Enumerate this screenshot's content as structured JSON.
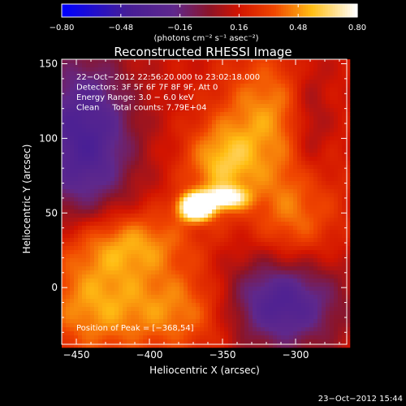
{
  "chart_data": {
    "type": "heatmap",
    "title": "Reconstructed RHESSI Image",
    "xlabel": "Heliocentric X (arcsec)",
    "ylabel": "Heliocentric Y (arcsec)",
    "xlim": [
      -460,
      -265
    ],
    "ylim": [
      -38,
      153
    ],
    "x_ticks": [
      -450,
      -400,
      -350,
      -300
    ],
    "x_tick_labels": [
      "−450",
      "−400",
      "−350",
      "−300"
    ],
    "y_ticks": [
      0,
      50,
      100,
      150
    ],
    "y_tick_labels": [
      "0",
      "50",
      "100",
      "150"
    ],
    "colorbar": {
      "range": [
        -0.8,
        0.8
      ],
      "ticks": [
        -0.8,
        -0.48,
        -0.16,
        0.16,
        0.48,
        0.8
      ],
      "tick_labels": [
        "−0.80",
        "−0.48",
        "−0.16",
        "0.16",
        "0.48",
        "0.80"
      ],
      "unit_label": "(photons cm⁻² s⁻¹ asec⁻²)"
    },
    "annotations": [
      "22−Oct−2012 22:56:20.000 to 23:02:18.000",
      "Detectors: 3F 5F 6F 7F 8F 9F, Att 0",
      "Energy Range: 3.0 − 6.0 keV",
      "Clean     Total counts: 7.79E+04"
    ],
    "peak_label": "Position of Peak = [−368,54]",
    "peak": [
      -368,
      54
    ],
    "sources": [
      {
        "x": -368,
        "y": 54,
        "amp": 1.0,
        "sx": 8,
        "sy": 6
      },
      {
        "x": -348,
        "y": 60,
        "amp": 0.55,
        "sx": 10,
        "sy": 5
      },
      {
        "x": -350,
        "y": 82,
        "amp": 0.38,
        "sx": 18,
        "sy": 20
      },
      {
        "x": -320,
        "y": 118,
        "amp": 0.3,
        "sx": 22,
        "sy": 28
      },
      {
        "x": -415,
        "y": 30,
        "amp": 0.35,
        "sx": 30,
        "sy": 16
      },
      {
        "x": -440,
        "y": -10,
        "amp": 0.32,
        "sx": 25,
        "sy": 25
      },
      {
        "x": -380,
        "y": -15,
        "amp": 0.3,
        "sx": 30,
        "sy": 20
      },
      {
        "x": -300,
        "y": 50,
        "amp": 0.28,
        "sx": 20,
        "sy": 28
      },
      {
        "x": -445,
        "y": 100,
        "amp": -0.55,
        "sx": 24,
        "sy": 40
      },
      {
        "x": -310,
        "y": -10,
        "amp": -0.55,
        "sx": 28,
        "sy": 22
      },
      {
        "x": -290,
        "y": 110,
        "amp": -0.2,
        "sx": 10,
        "sy": 30
      }
    ],
    "grid": false
  },
  "footer": {
    "timestamp": "23−Oct−2012 15:44"
  }
}
